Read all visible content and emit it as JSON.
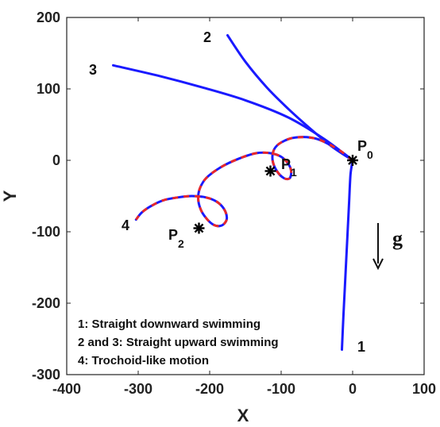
{
  "chart_data": {
    "type": "line",
    "xlabel": "X",
    "ylabel": "Y",
    "xlim": [
      -400,
      100
    ],
    "ylim": [
      -300,
      200
    ],
    "xticks": [
      -400,
      -300,
      -200,
      -100,
      0,
      100
    ],
    "yticks": [
      -300,
      -200,
      -100,
      0,
      100,
      200
    ],
    "grid": false,
    "series": [
      {
        "name": "1",
        "style": "solid",
        "colors": [
          "#1a1aff"
        ],
        "x": [
          0,
          -3,
          -5,
          -7,
          -9,
          -11,
          -13,
          -15
        ],
        "y": [
          0,
          -20,
          -60,
          -100,
          -140,
          -180,
          -220,
          -265
        ]
      },
      {
        "name": "2",
        "style": "solid",
        "colors": [
          "#1a1aff"
        ],
        "x": [
          0,
          -30,
          -60,
          -90,
          -120,
          -150,
          -175
        ],
        "y": [
          0,
          20,
          45,
          72,
          102,
          138,
          175
        ]
      },
      {
        "name": "3",
        "style": "solid",
        "colors": [
          "#1a1aff"
        ],
        "x": [
          0,
          -40,
          -90,
          -150,
          -210,
          -270,
          -335
        ],
        "y": [
          0,
          30,
          60,
          84,
          102,
          118,
          133
        ]
      },
      {
        "name": "4",
        "style": "dashed-two-color",
        "colors": [
          "#1a1aff",
          "#e8282a"
        ],
        "x": [
          0,
          -20,
          -50,
          -80,
          -100,
          -110,
          -112,
          -106,
          -96,
          -88,
          -86,
          -90,
          -100,
          -115,
          -135,
          -160,
          -185,
          -205,
          -214,
          -216,
          -212,
          -204,
          -195,
          -186,
          -179,
          -176,
          -180,
          -190,
          -205,
          -225,
          -245,
          -265,
          -282,
          -295,
          -303
        ],
        "y": [
          0,
          15,
          30,
          32,
          25,
          15,
          0,
          -15,
          -25,
          -25,
          -15,
          -5,
          5,
          10,
          10,
          2,
          -10,
          -25,
          -40,
          -55,
          -70,
          -82,
          -90,
          -92,
          -88,
          -80,
          -68,
          -58,
          -52,
          -50,
          -52,
          -56,
          -64,
          -73,
          -83
        ]
      }
    ],
    "markers": [
      {
        "label": "P",
        "sub": "0",
        "x": 0,
        "y": 0
      },
      {
        "label": "P",
        "sub": "1",
        "x": -115,
        "y": -15
      },
      {
        "label": "P",
        "sub": "2",
        "x": -215,
        "y": -95
      }
    ],
    "curve_labels": [
      "1",
      "2",
      "3",
      "4"
    ],
    "gravity_label": "g",
    "legend": [
      "1: Straight downward swimming",
      "2 and 3: Straight upward swimming",
      "4: Trochoid-like motion"
    ],
    "legend_position": "bottom-left"
  }
}
